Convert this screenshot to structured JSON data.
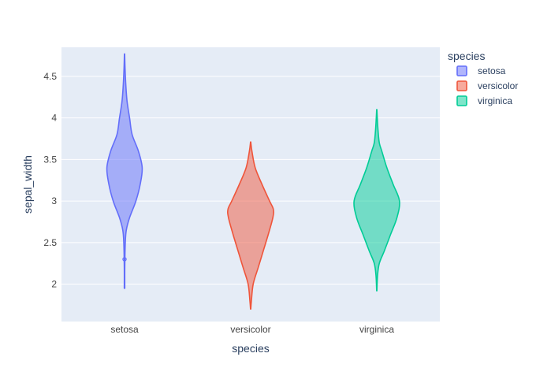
{
  "chart_data": {
    "type": "violin",
    "xlabel": "species",
    "ylabel": "sepal_width",
    "categories": [
      "setosa",
      "versicolor",
      "virginica"
    ],
    "ylim": [
      1.55,
      4.85
    ],
    "yticks": [
      2,
      2.5,
      3,
      3.5,
      4,
      4.5
    ],
    "ytick_labels": [
      "2",
      "2.5",
      "3",
      "3.5",
      "4",
      "4.5"
    ],
    "grid": true,
    "legend": {
      "title": "species",
      "placement": "top-right",
      "entries": [
        "setosa",
        "versicolor",
        "virginica"
      ]
    },
    "series": [
      {
        "name": "setosa",
        "color": "#636efa",
        "outliers": [
          2.3
        ],
        "profile": [
          [
            1.95,
            0.01
          ],
          [
            2.2,
            0.01
          ],
          [
            2.5,
            0.03
          ],
          [
            2.65,
            0.07
          ],
          [
            2.8,
            0.2
          ],
          [
            3.0,
            0.45
          ],
          [
            3.2,
            0.62
          ],
          [
            3.4,
            0.7
          ],
          [
            3.6,
            0.55
          ],
          [
            3.8,
            0.3
          ],
          [
            4.0,
            0.2
          ],
          [
            4.2,
            0.1
          ],
          [
            4.4,
            0.05
          ],
          [
            4.6,
            0.02
          ],
          [
            4.77,
            0.005
          ]
        ]
      },
      {
        "name": "versicolor",
        "color": "#EF553B",
        "outliers": [],
        "profile": [
          [
            1.7,
            0.005
          ],
          [
            1.8,
            0.03
          ],
          [
            2.0,
            0.1
          ],
          [
            2.2,
            0.3
          ],
          [
            2.4,
            0.5
          ],
          [
            2.6,
            0.7
          ],
          [
            2.8,
            0.88
          ],
          [
            2.9,
            0.9
          ],
          [
            3.0,
            0.75
          ],
          [
            3.2,
            0.45
          ],
          [
            3.4,
            0.18
          ],
          [
            3.6,
            0.05
          ],
          [
            3.71,
            0.005
          ]
        ]
      },
      {
        "name": "virginica",
        "color": "#00cc96",
        "outliers": [],
        "profile": [
          [
            1.92,
            0.005
          ],
          [
            2.1,
            0.03
          ],
          [
            2.25,
            0.1
          ],
          [
            2.4,
            0.3
          ],
          [
            2.6,
            0.55
          ],
          [
            2.8,
            0.8
          ],
          [
            3.0,
            0.9
          ],
          [
            3.2,
            0.65
          ],
          [
            3.4,
            0.4
          ],
          [
            3.6,
            0.2
          ],
          [
            3.7,
            0.1
          ],
          [
            3.85,
            0.05
          ],
          [
            4.0,
            0.02
          ],
          [
            4.1,
            0.005
          ]
        ]
      }
    ]
  }
}
